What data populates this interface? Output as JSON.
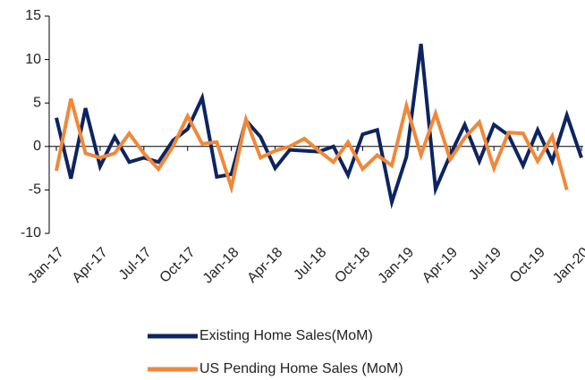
{
  "chart_data": {
    "type": "line",
    "categories": [
      "Jan-17",
      null,
      null,
      "Apr-17",
      null,
      null,
      "Jul-17",
      null,
      null,
      "Oct-17",
      null,
      null,
      "Jan-18",
      null,
      null,
      "Apr-18",
      null,
      null,
      "Jul-18",
      null,
      null,
      "Oct-18",
      null,
      null,
      "Jan-19",
      null,
      null,
      "Apr-19",
      null,
      null,
      "Jul-19",
      null,
      null,
      "Oct-19",
      null,
      null,
      "Jan-20"
    ],
    "series": [
      {
        "name": "Existing Home Sales(MoM)",
        "color": "#0d2461",
        "values": [
          3.3,
          -3.7,
          4.4,
          -2.3,
          1.1,
          -1.8,
          -1.3,
          -1.8,
          0.7,
          2.0,
          5.6,
          -3.5,
          -3.2,
          3.0,
          1.1,
          -2.5,
          -0.4,
          -0.5,
          -0.6,
          0.0,
          -3.3,
          1.4,
          1.9,
          -6.4,
          -1.2,
          11.8,
          -4.9,
          -1.0,
          2.5,
          -1.7,
          2.5,
          1.3,
          -2.2,
          1.9,
          -1.7,
          3.6,
          -1.3
        ]
      },
      {
        "name": "US Pending Home Sales (MoM)",
        "color": "#f0883a",
        "values": [
          -2.8,
          5.5,
          -0.8,
          -1.3,
          -0.8,
          1.5,
          -0.8,
          -2.6,
          0.0,
          3.5,
          0.3,
          0.5,
          -4.7,
          3.1,
          -1.3,
          -0.5,
          0.0,
          0.9,
          -0.5,
          -1.8,
          0.5,
          -2.6,
          -1.0,
          -2.2,
          4.7,
          -1.0,
          3.8,
          -1.5,
          1.0,
          2.8,
          -2.5,
          1.6,
          1.5,
          -1.7,
          1.2,
          -5.0,
          null
        ]
      }
    ],
    "ylim": [
      -10,
      15
    ],
    "yticks": [
      -10,
      -5,
      0,
      5,
      10,
      15
    ],
    "legend": "bottom"
  }
}
